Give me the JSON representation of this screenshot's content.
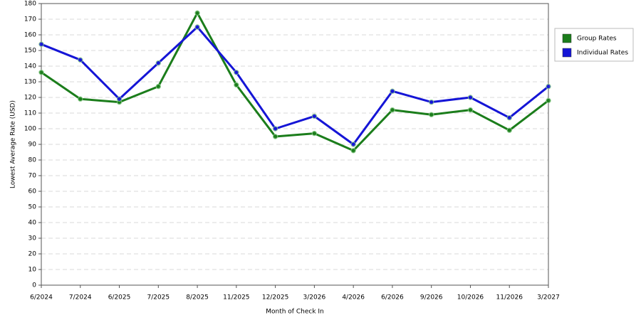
{
  "chart_data": {
    "type": "line",
    "x_label": "Month of Check In",
    "y_label": "Lowest Average Rate (USD)",
    "categories": [
      "6/2024",
      "7/2024",
      "6/2025",
      "7/2025",
      "8/2025",
      "11/2025",
      "12/2025",
      "3/2026",
      "4/2026",
      "6/2026",
      "9/2026",
      "10/2026",
      "11/2026",
      "3/2027"
    ],
    "series": [
      {
        "name": "Group Rates",
        "color": "#1b7d1b",
        "values": [
          136,
          119,
          117,
          127,
          174,
          128,
          95,
          97,
          86,
          112,
          109,
          112,
          99,
          118
        ]
      },
      {
        "name": "Individual Rates",
        "color": "#1515d6",
        "values": [
          154,
          144,
          119,
          142,
          165,
          136,
          100,
          108,
          90,
          124,
          117,
          120,
          107,
          127
        ]
      }
    ],
    "ylim": [
      0,
      180
    ],
    "yticks": [
      0,
      10,
      20,
      30,
      40,
      50,
      60,
      70,
      80,
      90,
      100,
      110,
      120,
      130,
      140,
      150,
      160,
      170,
      180
    ],
    "grid": true,
    "legend": "right"
  }
}
